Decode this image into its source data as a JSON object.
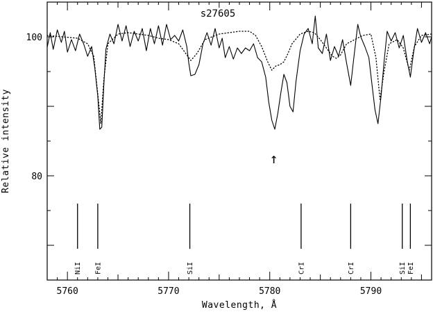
{
  "chart_data": {
    "type": "line",
    "title": "s27605",
    "xlabel": "Wavelength, Å",
    "ylabel": "Relative intensity",
    "xlim": [
      5758,
      5796
    ],
    "ylim": [
      65,
      105
    ],
    "x_ticks": [
      5760,
      5770,
      5780,
      5790
    ],
    "y_ticks": [
      80,
      100
    ],
    "x_tick_labels": [
      "5760",
      "5770",
      "5780",
      "5790"
    ],
    "y_tick_labels": [
      "80",
      "100"
    ],
    "grid": false,
    "legend": "none",
    "annotation": {
      "text": "↑",
      "x": 5780.4,
      "y": 82.6
    },
    "series": [
      {
        "style": "solid",
        "points": [
          [
            5758.0,
            98.5
          ],
          [
            5758.3,
            100.6
          ],
          [
            5758.6,
            98.2
          ],
          [
            5759.0,
            101.0
          ],
          [
            5759.4,
            99.2
          ],
          [
            5759.7,
            100.8
          ],
          [
            5760.0,
            97.8
          ],
          [
            5760.4,
            99.6
          ],
          [
            5760.8,
            98.0
          ],
          [
            5761.2,
            100.4
          ],
          [
            5761.6,
            99.0
          ],
          [
            5762.0,
            97.2
          ],
          [
            5762.4,
            98.6
          ],
          [
            5762.7,
            95.6
          ],
          [
            5763.0,
            91.5
          ],
          [
            5763.2,
            86.7
          ],
          [
            5763.4,
            87.0
          ],
          [
            5763.6,
            93.0
          ],
          [
            5763.8,
            98.2
          ],
          [
            5764.2,
            100.4
          ],
          [
            5764.6,
            99.0
          ],
          [
            5765.0,
            101.8
          ],
          [
            5765.4,
            99.4
          ],
          [
            5765.8,
            101.6
          ],
          [
            5766.2,
            98.6
          ],
          [
            5766.6,
            100.8
          ],
          [
            5767.0,
            99.4
          ],
          [
            5767.4,
            101.2
          ],
          [
            5767.8,
            98.0
          ],
          [
            5768.2,
            101.2
          ],
          [
            5768.6,
            99.0
          ],
          [
            5769.0,
            101.6
          ],
          [
            5769.4,
            98.8
          ],
          [
            5769.8,
            101.8
          ],
          [
            5770.2,
            99.6
          ],
          [
            5770.6,
            100.2
          ],
          [
            5771.0,
            99.4
          ],
          [
            5771.4,
            101.0
          ],
          [
            5771.8,
            98.6
          ],
          [
            5772.0,
            96.2
          ],
          [
            5772.2,
            94.4
          ],
          [
            5772.6,
            94.6
          ],
          [
            5773.0,
            96.0
          ],
          [
            5773.4,
            99.0
          ],
          [
            5773.8,
            100.6
          ],
          [
            5774.2,
            98.8
          ],
          [
            5774.6,
            101.2
          ],
          [
            5775.0,
            98.4
          ],
          [
            5775.3,
            99.8
          ],
          [
            5775.6,
            97.0
          ],
          [
            5776.0,
            98.6
          ],
          [
            5776.4,
            96.8
          ],
          [
            5776.8,
            98.4
          ],
          [
            5777.2,
            97.6
          ],
          [
            5777.6,
            98.4
          ],
          [
            5778.0,
            98.0
          ],
          [
            5778.4,
            99.0
          ],
          [
            5778.8,
            97.0
          ],
          [
            5779.2,
            96.4
          ],
          [
            5779.6,
            94.2
          ],
          [
            5779.9,
            90.6
          ],
          [
            5780.2,
            88.0
          ],
          [
            5780.5,
            86.7
          ],
          [
            5780.8,
            89.0
          ],
          [
            5781.1,
            92.0
          ],
          [
            5781.4,
            94.6
          ],
          [
            5781.7,
            93.4
          ],
          [
            5782.0,
            90.0
          ],
          [
            5782.3,
            89.2
          ],
          [
            5782.6,
            93.6
          ],
          [
            5783.0,
            98.0
          ],
          [
            5783.4,
            100.4
          ],
          [
            5783.8,
            101.2
          ],
          [
            5784.2,
            99.0
          ],
          [
            5784.5,
            103.0
          ],
          [
            5784.8,
            98.4
          ],
          [
            5785.2,
            97.6
          ],
          [
            5785.6,
            100.4
          ],
          [
            5786.0,
            96.6
          ],
          [
            5786.4,
            98.6
          ],
          [
            5786.8,
            97.2
          ],
          [
            5787.2,
            99.6
          ],
          [
            5787.6,
            96.2
          ],
          [
            5788.0,
            93.0
          ],
          [
            5788.3,
            96.8
          ],
          [
            5788.7,
            101.8
          ],
          [
            5789.0,
            100.0
          ],
          [
            5789.4,
            98.6
          ],
          [
            5789.8,
            97.0
          ],
          [
            5790.1,
            93.2
          ],
          [
            5790.4,
            89.5
          ],
          [
            5790.7,
            87.5
          ],
          [
            5791.0,
            91.4
          ],
          [
            5791.3,
            96.4
          ],
          [
            5791.6,
            100.8
          ],
          [
            5792.0,
            99.4
          ],
          [
            5792.4,
            100.6
          ],
          [
            5792.8,
            98.4
          ],
          [
            5793.2,
            100.2
          ],
          [
            5793.6,
            96.4
          ],
          [
            5793.9,
            94.2
          ],
          [
            5794.2,
            97.6
          ],
          [
            5794.6,
            101.2
          ],
          [
            5795.0,
            99.2
          ],
          [
            5795.4,
            100.6
          ],
          [
            5795.8,
            99.0
          ],
          [
            5796.0,
            100.0
          ]
        ]
      },
      {
        "style": "dotted",
        "points": [
          [
            5758.0,
            100.2
          ],
          [
            5759.5,
            100.0
          ],
          [
            5761.0,
            99.8
          ],
          [
            5762.0,
            99.0
          ],
          [
            5762.6,
            97.2
          ],
          [
            5763.0,
            91.8
          ],
          [
            5763.3,
            87.5
          ],
          [
            5763.6,
            93.8
          ],
          [
            5764.0,
            99.0
          ],
          [
            5765.0,
            100.4
          ],
          [
            5766.0,
            100.6
          ],
          [
            5767.0,
            100.4
          ],
          [
            5768.0,
            100.2
          ],
          [
            5769.0,
            99.8
          ],
          [
            5770.0,
            99.6
          ],
          [
            5771.0,
            99.0
          ],
          [
            5771.6,
            97.8
          ],
          [
            5772.2,
            96.6
          ],
          [
            5772.8,
            97.6
          ],
          [
            5773.6,
            99.6
          ],
          [
            5775.0,
            100.4
          ],
          [
            5776.0,
            100.6
          ],
          [
            5777.0,
            100.8
          ],
          [
            5778.0,
            100.8
          ],
          [
            5778.6,
            100.2
          ],
          [
            5779.2,
            98.6
          ],
          [
            5779.8,
            96.4
          ],
          [
            5780.2,
            95.2
          ],
          [
            5780.6,
            95.8
          ],
          [
            5781.0,
            96.0
          ],
          [
            5781.4,
            96.4
          ],
          [
            5781.8,
            97.6
          ],
          [
            5782.2,
            99.0
          ],
          [
            5783.0,
            100.4
          ],
          [
            5783.8,
            100.8
          ],
          [
            5784.4,
            100.6
          ],
          [
            5785.0,
            99.6
          ],
          [
            5785.6,
            98.4
          ],
          [
            5786.2,
            97.2
          ],
          [
            5786.6,
            96.9
          ],
          [
            5787.0,
            97.4
          ],
          [
            5787.6,
            99.0
          ],
          [
            5788.4,
            99.6
          ],
          [
            5789.2,
            100.2
          ],
          [
            5790.0,
            100.4
          ],
          [
            5790.5,
            97.0
          ],
          [
            5790.9,
            91.0
          ],
          [
            5791.3,
            95.0
          ],
          [
            5791.8,
            99.0
          ],
          [
            5792.6,
            99.6
          ],
          [
            5793.2,
            98.4
          ],
          [
            5793.8,
            95.2
          ],
          [
            5794.3,
            98.6
          ],
          [
            5795.0,
            100.2
          ],
          [
            5796.0,
            100.4
          ]
        ]
      }
    ],
    "line_ids": [
      {
        "label": "NiI",
        "x": 5761.0
      },
      {
        "label": "FeI",
        "x": 5763.0
      },
      {
        "label": "SiI",
        "x": 5772.1
      },
      {
        "label": "CrI",
        "x": 5783.1
      },
      {
        "label": "CrI",
        "x": 5788.0
      },
      {
        "label": "SiI",
        "x": 5793.1
      },
      {
        "label": "FeI",
        "x": 5793.9
      }
    ],
    "line_id_range": [
      69.5,
      76.0
    ]
  }
}
